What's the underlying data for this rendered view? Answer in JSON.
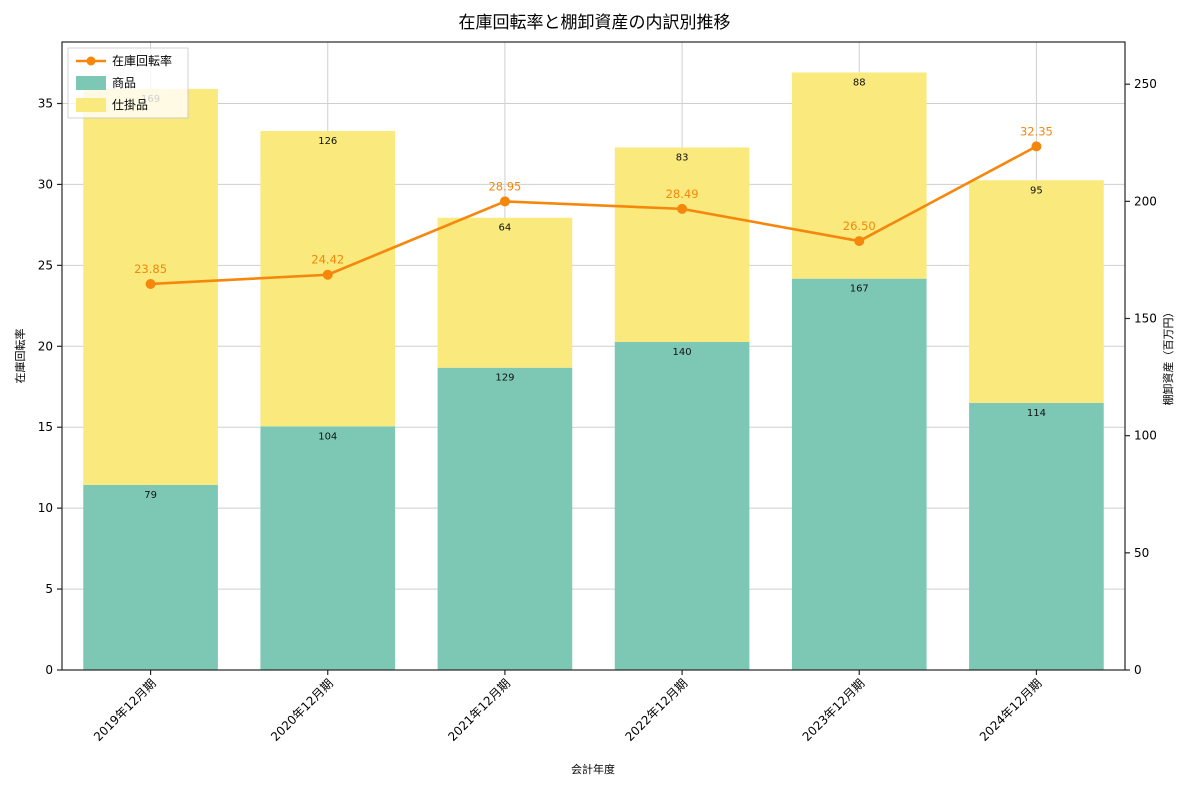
{
  "chart_data": {
    "type": "bar",
    "subtype": "stacked-bar-with-line",
    "title": "在庫回転率と棚卸資産の内訳別推移",
    "xlabel": "会計年度",
    "ylabel_left": "在庫回転率",
    "ylabel_right": "棚卸資産（百万円）",
    "categories": [
      "2019年12月期",
      "2020年12月期",
      "2021年12月期",
      "2022年12月期",
      "2023年12月期",
      "2024年12月期"
    ],
    "bar_series": [
      {
        "name": "商品",
        "color": "#7dc8b5",
        "axis": "right",
        "values": [
          79,
          104,
          129,
          140,
          167,
          114
        ]
      },
      {
        "name": "仕掛品",
        "color": "#fae97c",
        "axis": "right",
        "values": [
          169,
          126,
          64,
          83,
          88,
          95
        ]
      }
    ],
    "line_series": {
      "name": "在庫回転率",
      "color": "#f5870d",
      "axis": "left",
      "values": [
        23.85,
        24.42,
        28.95,
        28.49,
        26.5,
        32.35
      ],
      "labels": [
        "23.85",
        "24.42",
        "28.95",
        "28.49",
        "26.50",
        "32.35"
      ]
    },
    "left_axis": {
      "ticks": [
        0,
        5,
        10,
        15,
        20,
        25,
        30,
        35
      ],
      "lim": [
        0,
        38.8
      ]
    },
    "right_axis": {
      "ticks": [
        0,
        50,
        100,
        150,
        200,
        250
      ],
      "lim": [
        0,
        268
      ]
    },
    "legend": {
      "position": "upper left",
      "entries": [
        "在庫回転率",
        "商品",
        "仕掛品"
      ]
    },
    "grid": true,
    "grid_color": "#cfcfcf",
    "spine_color": "#262626"
  }
}
